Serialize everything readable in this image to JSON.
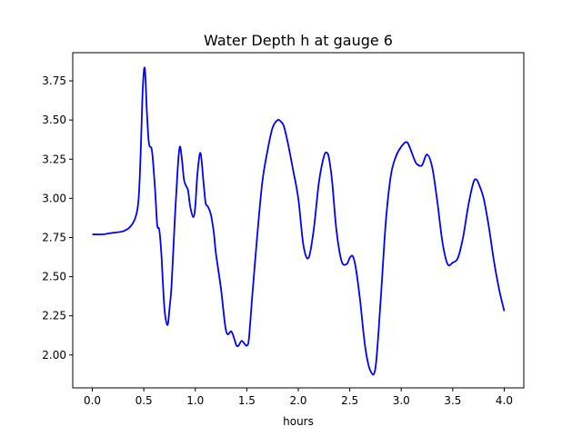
{
  "chart_data": {
    "type": "line",
    "title": "Water Depth h at gauge 6",
    "xlabel": "hours",
    "ylabel": "",
    "xlim": [
      -0.19,
      4.19
    ],
    "ylim": [
      1.79,
      3.93
    ],
    "xticks": [
      0.0,
      0.5,
      1.0,
      1.5,
      2.0,
      2.5,
      3.0,
      3.5,
      4.0
    ],
    "xtick_labels": [
      "0.0",
      "0.5",
      "1.0",
      "1.5",
      "2.0",
      "2.5",
      "3.0",
      "3.5",
      "4.0"
    ],
    "yticks": [
      2.0,
      2.25,
      2.5,
      2.75,
      3.0,
      3.25,
      3.5,
      3.75
    ],
    "ytick_labels": [
      "2.00",
      "2.25",
      "2.50",
      "2.75",
      "3.00",
      "3.25",
      "3.50",
      "3.75"
    ],
    "grid": false,
    "series": [
      {
        "color": "#0000ff",
        "x": [
          0.0,
          0.1,
          0.2,
          0.3,
          0.37,
          0.42,
          0.45,
          0.47,
          0.49,
          0.51,
          0.53,
          0.55,
          0.58,
          0.61,
          0.63,
          0.65,
          0.67,
          0.7,
          0.73,
          0.75,
          0.77,
          0.8,
          0.83,
          0.85,
          0.87,
          0.89,
          0.91,
          0.93,
          0.95,
          0.98,
          1.0,
          1.02,
          1.05,
          1.08,
          1.1,
          1.12,
          1.15,
          1.18,
          1.2,
          1.25,
          1.3,
          1.35,
          1.38,
          1.4,
          1.42,
          1.45,
          1.48,
          1.5,
          1.52,
          1.55,
          1.6,
          1.65,
          1.7,
          1.75,
          1.8,
          1.83,
          1.86,
          1.9,
          1.95,
          2.0,
          2.05,
          2.1,
          2.15,
          2.2,
          2.25,
          2.28,
          2.3,
          2.33,
          2.37,
          2.42,
          2.47,
          2.5,
          2.53,
          2.56,
          2.6,
          2.65,
          2.7,
          2.75,
          2.8,
          2.85,
          2.9,
          2.95,
          3.0,
          3.05,
          3.08,
          3.12,
          3.15,
          3.2,
          3.25,
          3.3,
          3.35,
          3.4,
          3.45,
          3.5,
          3.55,
          3.6,
          3.65,
          3.7,
          3.73,
          3.76,
          3.8,
          3.85,
          3.9,
          3.95,
          4.0
        ],
        "y": [
          2.77,
          2.77,
          2.78,
          2.79,
          2.82,
          2.88,
          3.0,
          3.3,
          3.7,
          3.83,
          3.55,
          3.35,
          3.3,
          3.05,
          2.83,
          2.8,
          2.65,
          2.3,
          2.19,
          2.3,
          2.45,
          2.85,
          3.2,
          3.33,
          3.25,
          3.12,
          3.08,
          3.05,
          2.95,
          2.88,
          2.95,
          3.15,
          3.29,
          3.1,
          2.97,
          2.95,
          2.9,
          2.78,
          2.65,
          2.42,
          2.15,
          2.15,
          2.1,
          2.06,
          2.06,
          2.09,
          2.07,
          2.06,
          2.1,
          2.35,
          2.75,
          3.1,
          3.3,
          3.45,
          3.5,
          3.49,
          3.46,
          3.35,
          3.18,
          3.0,
          2.7,
          2.62,
          2.8,
          3.1,
          3.27,
          3.29,
          3.25,
          3.1,
          2.8,
          2.6,
          2.58,
          2.62,
          2.63,
          2.55,
          2.35,
          2.05,
          1.9,
          1.92,
          2.35,
          2.85,
          3.15,
          3.27,
          3.33,
          3.36,
          3.33,
          3.26,
          3.22,
          3.21,
          3.28,
          3.2,
          2.98,
          2.72,
          2.58,
          2.59,
          2.62,
          2.75,
          2.95,
          3.1,
          3.12,
          3.08,
          3.0,
          2.82,
          2.6,
          2.42,
          2.28
        ]
      }
    ]
  }
}
